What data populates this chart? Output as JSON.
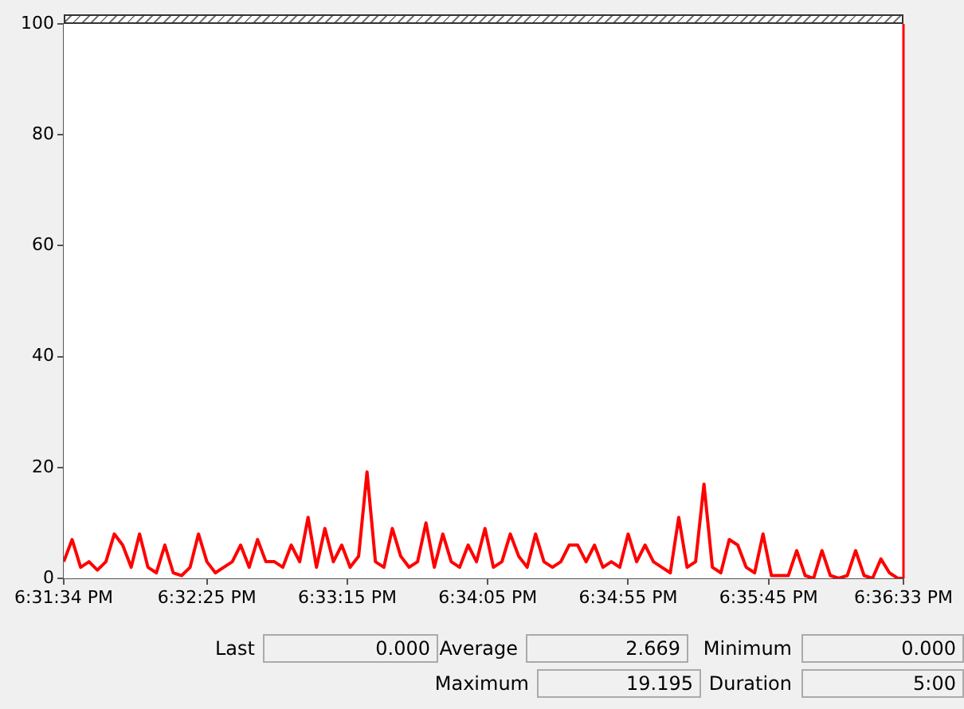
{
  "chart_data": {
    "type": "line",
    "xlim": [
      18.52611,
      18.60917
    ],
    "xticks": [
      {
        "value": 18.52611,
        "label": "6:31:34 PM"
      },
      {
        "value": 18.54028,
        "label": "6:32:25 PM"
      },
      {
        "value": 18.55417,
        "label": "6:33:15 PM"
      },
      {
        "value": 18.56806,
        "label": "6:34:05 PM"
      },
      {
        "value": 18.58194,
        "label": "6:34:55 PM"
      },
      {
        "value": 18.59583,
        "label": "6:35:45 PM"
      },
      {
        "value": 18.60917,
        "label": "6:36:33 PM"
      }
    ],
    "ylim": [
      0,
      100
    ],
    "yticks": [
      0,
      20,
      40,
      60,
      80,
      100
    ],
    "legend": false,
    "marker": "none",
    "line_style": "solid",
    "series": [
      {
        "color": "#ff0000",
        "x": [
          18.52611,
          18.52694,
          18.52778,
          18.52861,
          18.52944,
          18.53028,
          18.53111,
          18.53194,
          18.53278,
          18.53361,
          18.53444,
          18.53527,
          18.53611,
          18.53694,
          18.53777,
          18.53861,
          18.53944,
          18.54027,
          18.54111,
          18.54194,
          18.54278,
          18.54361,
          18.54445,
          18.54528,
          18.54611,
          18.54695,
          18.54778,
          18.54861,
          18.54945,
          18.55028,
          18.55111,
          18.55194,
          18.55278,
          18.55361,
          18.55444,
          18.55528,
          18.55611,
          18.55694,
          18.55778,
          18.55861,
          18.55944,
          18.56027,
          18.56111,
          18.56194,
          18.56277,
          18.56361,
          18.56444,
          18.56527,
          18.56611,
          18.56694,
          18.56778,
          18.56861,
          18.56945,
          18.57028,
          18.57111,
          18.57195,
          18.57278,
          18.57361,
          18.57445,
          18.57528,
          18.57611,
          18.57694,
          18.57778,
          18.57861,
          18.57944,
          18.58028,
          18.58111,
          18.58194,
          18.58278,
          18.58361,
          18.58444,
          18.58527,
          18.58611,
          18.58694,
          18.58777,
          18.58861,
          18.58944,
          18.59027,
          18.59111,
          18.59194,
          18.59278,
          18.59361,
          18.59445,
          18.59528,
          18.59611,
          18.59695,
          18.59778,
          18.59861,
          18.59945,
          18.60028,
          18.60111,
          18.60194,
          18.60278,
          18.60361,
          18.60444,
          18.60528,
          18.60611,
          18.60694,
          18.60778,
          18.60861,
          18.60917
        ],
        "values": [
          3,
          7,
          2,
          3,
          1.5,
          3,
          8,
          6,
          2,
          8,
          2,
          1,
          6,
          1,
          0.5,
          2,
          8,
          3,
          1,
          2,
          3,
          6,
          2,
          7,
          3,
          3,
          2,
          6,
          3,
          11,
          2,
          9,
          3,
          6,
          2,
          4,
          19.2,
          3,
          2,
          9,
          4,
          2,
          3,
          10,
          2,
          8,
          3,
          2,
          6,
          3,
          9,
          2,
          3,
          8,
          4,
          2,
          8,
          3,
          2,
          3,
          6,
          6,
          3,
          6,
          2,
          3,
          2,
          8,
          3,
          6,
          3,
          2,
          1,
          11,
          2,
          3,
          17,
          2,
          1,
          7,
          6,
          2,
          1,
          8,
          0.5,
          0.5,
          0.5,
          5,
          0.5,
          0,
          5,
          0.5,
          0,
          0.5,
          5,
          0.5,
          0,
          3.5,
          1,
          0,
          0
        ]
      }
    ],
    "ref_lines": [
      {
        "axis": "x",
        "value": 18.60917,
        "color": "#ff0000"
      }
    ],
    "annotations": [
      "Last",
      "0.000",
      "Average",
      "2.669",
      "Minimum",
      "0.000",
      "Maximum",
      "19.195",
      "Duration",
      "5:00"
    ]
  }
}
